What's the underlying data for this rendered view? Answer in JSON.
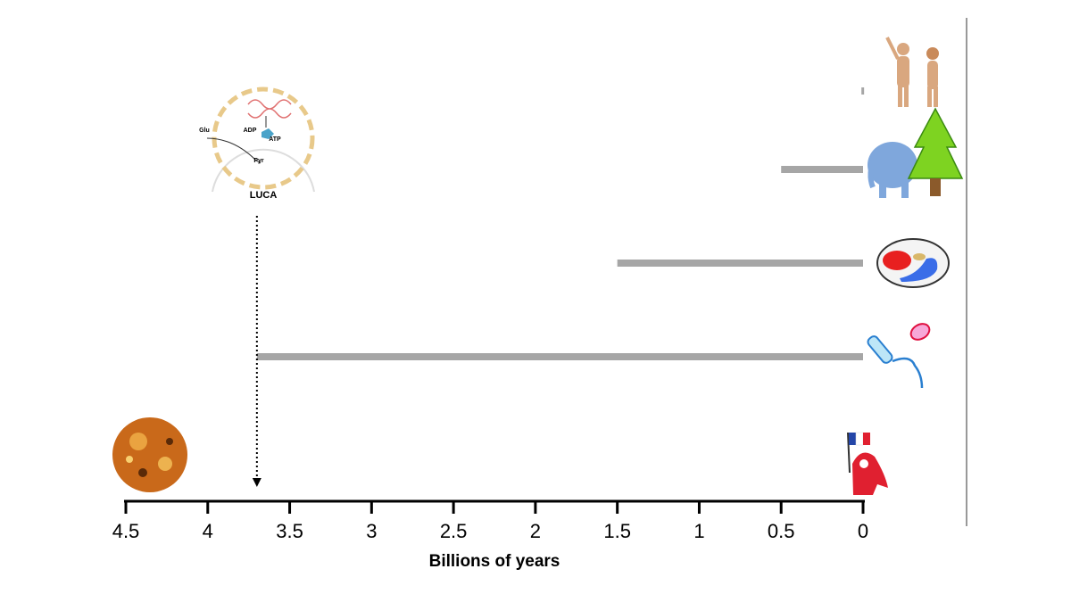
{
  "chart_data": {
    "type": "bar",
    "orientation": "horizontal",
    "categories": [
      null,
      null,
      null,
      null
    ],
    "values": [
      0.01,
      0.5,
      1.5,
      3.7
    ],
    "color": "#a6a6a6",
    "xlim": [
      4.5,
      0
    ],
    "xticks": [
      4.5,
      4,
      3.5,
      3,
      2.5,
      2,
      1.5,
      1,
      0.5,
      0
    ],
    "xlabel": "Billions of years",
    "luca": {
      "label": "LUCA",
      "x": 3.7,
      "diagram_labels": [
        "Glu",
        "ADP",
        "ATP",
        "Pyr"
      ]
    }
  }
}
